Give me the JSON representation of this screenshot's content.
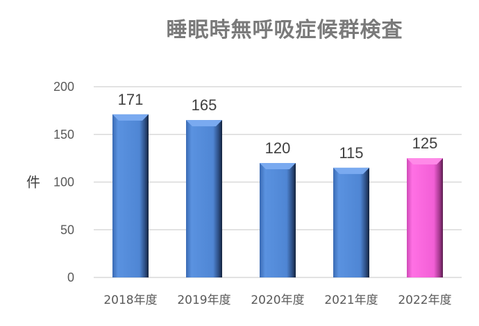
{
  "chart_data": {
    "type": "bar",
    "title": "睡眠時無呼吸症候群検査",
    "xlabel": "",
    "ylabel": "件",
    "ylim": [
      0,
      200
    ],
    "yticks": [
      0,
      50,
      100,
      150,
      200
    ],
    "grid": true,
    "categories": [
      "2018年度",
      "2019年度",
      "2020年度",
      "2021年度",
      "2022年度"
    ],
    "values": [
      171,
      165,
      120,
      115,
      125
    ],
    "colors": [
      "#4f86d4",
      "#4f86d4",
      "#4f86d4",
      "#4f86d4",
      "#f25fd6"
    ]
  }
}
